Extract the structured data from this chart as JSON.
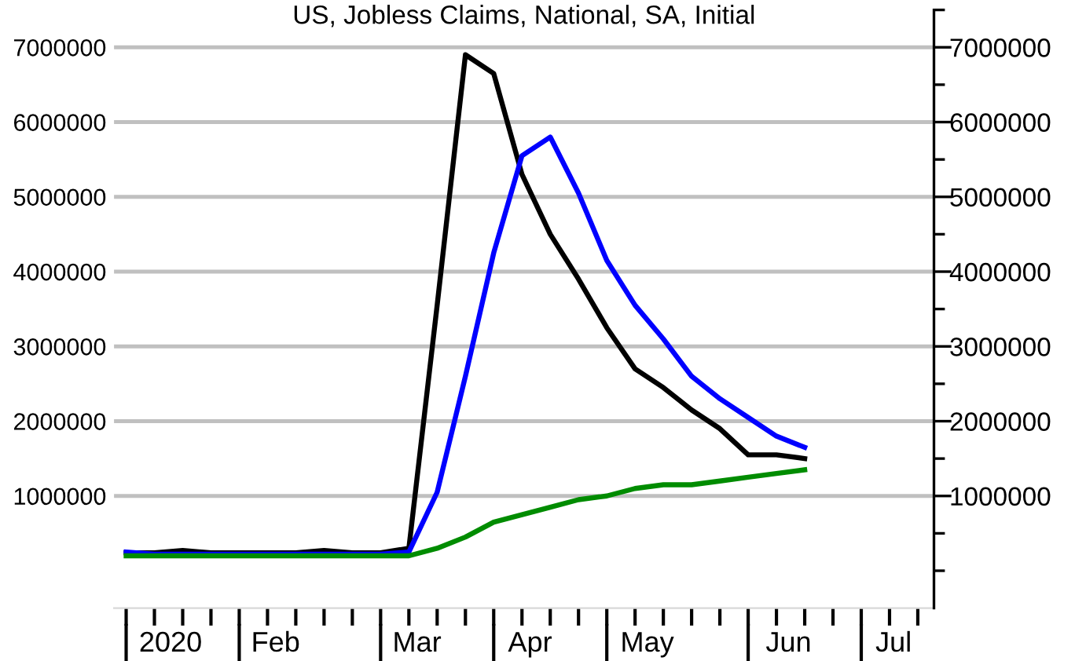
{
  "chart_data": {
    "type": "line",
    "title": "US, Jobless Claims, National, SA, Initial",
    "x": [
      "2020-01-04",
      "2020-01-11",
      "2020-01-18",
      "2020-01-25",
      "2020-02-01",
      "2020-02-08",
      "2020-02-15",
      "2020-02-22",
      "2020-02-29",
      "2020-03-07",
      "2020-03-14",
      "2020-03-21",
      "2020-03-28",
      "2020-04-04",
      "2020-04-11",
      "2020-04-18",
      "2020-04-25",
      "2020-05-02",
      "2020-05-09",
      "2020-05-16",
      "2020-05-23",
      "2020-05-30",
      "2020-06-06",
      "2020-06-13",
      "2020-06-20"
    ],
    "series": [
      {
        "color": "#000000",
        "values": [
          240000,
          240000,
          270000,
          240000,
          240000,
          240000,
          240000,
          270000,
          240000,
          240000,
          300000,
          3550000,
          6900000,
          6650000,
          5300000,
          4500000,
          3900000,
          3250000,
          2700000,
          2450000,
          2150000,
          1900000,
          1550000,
          1550000,
          1500000
        ]
      },
      {
        "color": "#0000ff",
        "values": [
          250000,
          220000,
          220000,
          220000,
          220000,
          220000,
          220000,
          220000,
          220000,
          220000,
          250000,
          1050000,
          2600000,
          4250000,
          5550000,
          5800000,
          5050000,
          4150000,
          3550000,
          3100000,
          2600000,
          2300000,
          2050000,
          1800000,
          1650000
        ]
      },
      {
        "color": "#008c00",
        "values": [
          200000,
          200000,
          200000,
          200000,
          200000,
          200000,
          200000,
          200000,
          200000,
          200000,
          200000,
          300000,
          450000,
          650000,
          750000,
          850000,
          950000,
          1000000,
          1100000,
          1150000,
          1150000,
          1200000,
          1250000,
          1300000,
          1350000
        ]
      }
    ],
    "xlim": [
      "2020-01-01",
      "2020-07-22"
    ],
    "xticks": [
      {
        "value": "2020-01-04",
        "label": null
      },
      {
        "value": "2020-01-11",
        "label": null
      },
      {
        "value": "2020-01-15",
        "label": "2020"
      },
      {
        "value": "2020-01-18",
        "label": null
      },
      {
        "value": "2020-01-25",
        "label": null
      },
      {
        "value": "2020-02-01",
        "label": null
      },
      {
        "value": "2020-02-08",
        "label": null
      },
      {
        "value": "2020-02-10",
        "label": "Feb"
      },
      {
        "value": "2020-02-15",
        "label": null
      },
      {
        "value": "2020-02-22",
        "label": null
      },
      {
        "value": "2020-02-29",
        "label": null
      },
      {
        "value": "2020-03-07",
        "label": null
      },
      {
        "value": "2020-03-14",
        "label": null
      },
      {
        "value": "2020-03-16",
        "label": "Mar"
      },
      {
        "value": "2020-03-21",
        "label": null
      },
      {
        "value": "2020-03-28",
        "label": null
      },
      {
        "value": "2020-04-04",
        "label": null
      },
      {
        "value": "2020-04-11",
        "label": null
      },
      {
        "value": "2020-04-13",
        "label": "Apr"
      },
      {
        "value": "2020-04-18",
        "label": null
      },
      {
        "value": "2020-04-25",
        "label": null
      },
      {
        "value": "2020-05-02",
        "label": null
      },
      {
        "value": "2020-05-09",
        "label": null
      },
      {
        "value": "2020-05-12",
        "label": "May"
      },
      {
        "value": "2020-05-16",
        "label": null
      },
      {
        "value": "2020-05-23",
        "label": null
      },
      {
        "value": "2020-05-30",
        "label": null
      },
      {
        "value": "2020-06-06",
        "label": null
      },
      {
        "value": "2020-06-13",
        "label": null
      },
      {
        "value": "2020-06-16",
        "label": "Jun"
      },
      {
        "value": "2020-06-20",
        "label": null
      },
      {
        "value": "2020-06-27",
        "label": null
      },
      {
        "value": "2020-07-04",
        "label": null
      },
      {
        "value": "2020-07-11",
        "label": null
      },
      {
        "value": "2020-07-12",
        "label": "Jul"
      },
      {
        "value": "2020-07-18",
        "label": null
      }
    ],
    "ylim": [
      -500000,
      7500000
    ],
    "yticks": [
      1000000,
      2000000,
      3000000,
      4000000,
      5000000,
      6000000,
      7000000
    ],
    "y2lim": [
      -500000,
      7500000
    ],
    "y2ticks": [
      {
        "value": 0,
        "label": null
      },
      {
        "value": 500000,
        "label": null
      },
      1000000,
      {
        "value": 1500000,
        "label": null
      },
      2000000,
      {
        "value": 2500000,
        "label": null
      },
      3000000,
      {
        "value": 3500000,
        "label": null
      },
      4000000,
      {
        "value": 4500000,
        "label": null
      },
      5000000,
      {
        "value": 5500000,
        "label": null
      },
      6000000,
      {
        "value": 6500000,
        "label": null
      },
      7000000,
      {
        "value": 7500000,
        "label": null
      }
    ],
    "grid": "y",
    "marker": "none",
    "line_style": "solid"
  }
}
